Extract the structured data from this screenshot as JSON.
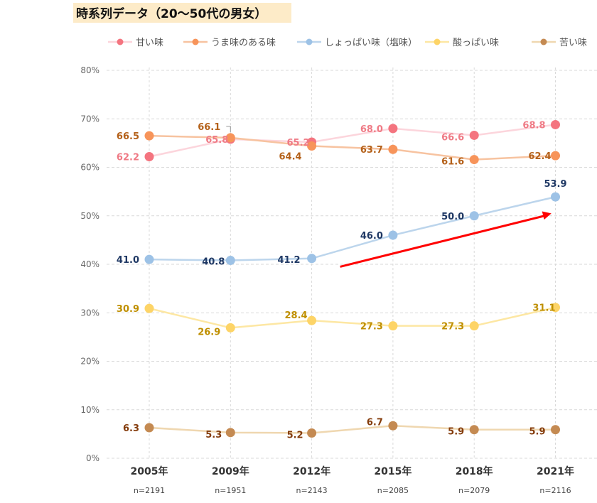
{
  "title": "時系列データ（20〜50代の男女）",
  "chart_data": {
    "type": "line",
    "title": "時系列データ（20〜50代の男女）",
    "xlabel": "",
    "ylabel": "",
    "categories": [
      "2005年",
      "2009年",
      "2012年",
      "2015年",
      "2018年",
      "2021年"
    ],
    "sample_sizes": [
      "n=2191",
      "n=1951",
      "n=2143",
      "n=2085",
      "n=2079",
      "n=2116"
    ],
    "ylim": [
      0,
      80
    ],
    "yticks": [
      0,
      10,
      20,
      30,
      40,
      50,
      60,
      70,
      80
    ],
    "ytick_labels": [
      "0%",
      "10%",
      "20%",
      "30%",
      "40%",
      "50%",
      "60%",
      "70%",
      "80%"
    ],
    "grid": true,
    "legend_position": "top",
    "series": [
      {
        "name": "甘い味",
        "values": [
          62.2,
          65.8,
          65.2,
          68.0,
          66.6,
          68.8
        ],
        "labels": [
          "62.2",
          "65.8",
          "65.2",
          "68.0",
          "66.6",
          "68.8"
        ],
        "line_color": "#fcd5dc",
        "marker_color": "#f4747f",
        "label_color": "#ef7b86"
      },
      {
        "name": "うま味のある味",
        "values": [
          66.5,
          66.1,
          64.4,
          63.7,
          61.6,
          62.4
        ],
        "labels": [
          "66.5",
          "66.1",
          "64.4",
          "63.7",
          "61.6",
          "62.4"
        ],
        "line_color": "#f7c3a0",
        "marker_color": "#f7945a",
        "label_color": "#b4611a"
      },
      {
        "name": "しょっぱい味（塩味）",
        "values": [
          41.0,
          40.8,
          41.2,
          46.0,
          50.0,
          53.9
        ],
        "labels": [
          "41.0",
          "40.8",
          "41.2",
          "46.0",
          "50.0",
          "53.9"
        ],
        "line_color": "#bcd5ec",
        "marker_color": "#9dc2e6",
        "label_color": "#1f3864"
      },
      {
        "name": "酸っぱい味",
        "values": [
          30.9,
          26.9,
          28.4,
          27.3,
          27.3,
          31.1
        ],
        "labels": [
          "30.9",
          "26.9",
          "28.4",
          "27.3",
          "27.3",
          "31.1"
        ],
        "line_color": "#fde7a3",
        "marker_color": "#fdd467",
        "label_color": "#bf8f00"
      },
      {
        "name": "苦い味",
        "values": [
          6.3,
          5.3,
          5.2,
          6.7,
          5.9,
          5.9
        ],
        "labels": [
          "6.3",
          "5.3",
          "5.2",
          "6.7",
          "5.9",
          "5.9"
        ],
        "line_color": "#efd7b0",
        "marker_color": "#c48a52",
        "label_color": "#843c0c"
      }
    ],
    "annotations": [
      {
        "type": "arrow",
        "color": "#ff0000",
        "from": {
          "x_index": 2.35,
          "y": 39.5
        },
        "to": {
          "x_index": 4.95,
          "y": 50.5
        },
        "description": "upward trend arrow for salty taste"
      }
    ]
  }
}
